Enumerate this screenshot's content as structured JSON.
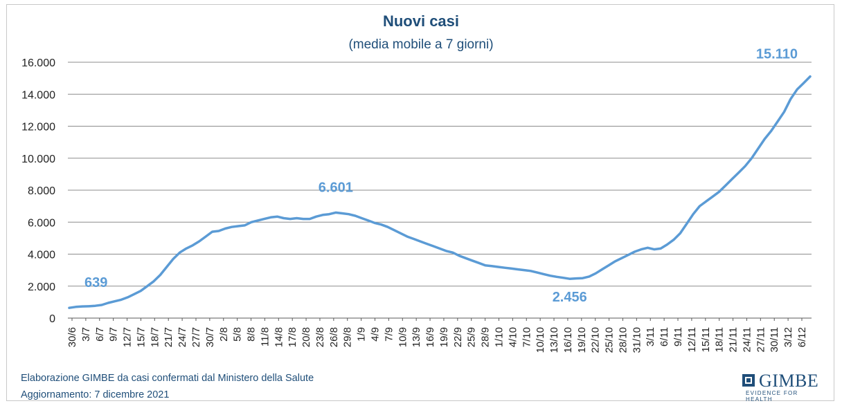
{
  "chart_data": {
    "type": "line",
    "title": "Nuovi casi",
    "subtitle": "(media mobile a 7 giorni)",
    "xlabel": "",
    "ylabel": "",
    "ylim": [
      0,
      16000
    ],
    "y_ticks": [
      "0",
      "2.000",
      "4.000",
      "6.000",
      "8.000",
      "10.000",
      "12.000",
      "14.000",
      "16.000"
    ],
    "y_tick_values": [
      0,
      2000,
      4000,
      6000,
      8000,
      10000,
      12000,
      14000,
      16000
    ],
    "x_tick_labels": [
      "30/6",
      "3/7",
      "6/7",
      "9/7",
      "12/7",
      "15/7",
      "18/7",
      "21/7",
      "24/7",
      "27/7",
      "30/7",
      "2/8",
      "5/8",
      "8/8",
      "11/8",
      "14/8",
      "17/8",
      "20/8",
      "23/8",
      "26/8",
      "29/8",
      "1/9",
      "4/9",
      "7/9",
      "10/9",
      "13/9",
      "16/9",
      "19/9",
      "22/9",
      "25/9",
      "28/9",
      "1/10",
      "4/10",
      "7/10",
      "10/10",
      "13/10",
      "16/10",
      "19/10",
      "22/10",
      "25/10",
      "28/10",
      "31/10",
      "3/11",
      "6/11",
      "9/11",
      "12/11",
      "15/11",
      "18/11",
      "21/11",
      "24/11",
      "27/11",
      "30/11",
      "3/12",
      "6/12"
    ],
    "grid": "horizontal",
    "line_color": "#5b9bd5",
    "series": [
      {
        "values": [
          639,
          700,
          730,
          740,
          770,
          820,
          950,
          1050,
          1150,
          1300,
          1500,
          1700,
          2000,
          2300,
          2700,
          3200,
          3700,
          4100,
          4350,
          4550,
          4800,
          5100,
          5400,
          5450,
          5600,
          5700,
          5750,
          5800,
          6000,
          6100,
          6200,
          6300,
          6350,
          6250,
          6200,
          6250,
          6200,
          6200,
          6350,
          6450,
          6500,
          6601,
          6550,
          6500,
          6400,
          6250,
          6100,
          5950,
          5850,
          5700,
          5500,
          5300,
          5100,
          4950,
          4800,
          4650,
          4500,
          4350,
          4200,
          4100,
          3900,
          3750,
          3600,
          3450,
          3300,
          3250,
          3200,
          3150,
          3100,
          3050,
          3000,
          2950,
          2850,
          2750,
          2650,
          2580,
          2520,
          2456,
          2480,
          2500,
          2600,
          2800,
          3050,
          3300,
          3550,
          3750,
          3950,
          4150,
          4300,
          4400,
          4300,
          4350,
          4600,
          4900,
          5300,
          5900,
          6500,
          7000,
          7300,
          7600,
          7900,
          8300,
          8700,
          9100,
          9500,
          10000,
          10600,
          11200,
          11700,
          12300,
          12900,
          13700,
          14300,
          14700,
          15110
        ],
        "start_label": "30/6",
        "end_label": "7/12"
      }
    ],
    "annotations": [
      {
        "text": "639",
        "x": "30/6",
        "y": 639
      },
      {
        "text": "6.601",
        "x": "28/8",
        "y": 6601
      },
      {
        "text": "2.456",
        "x": "16/10",
        "y": 2456
      },
      {
        "text": "15.110",
        "x": "7/12",
        "y": 15110
      }
    ]
  },
  "footer": {
    "line1": "Elaborazione GIMBE da casi confermati dal Ministero della Salute",
    "line2": "Aggiornamento:  7 dicembre  2021"
  },
  "logo": {
    "name": "GIMBE",
    "tagline": "EVIDENCE FOR HEALTH"
  }
}
